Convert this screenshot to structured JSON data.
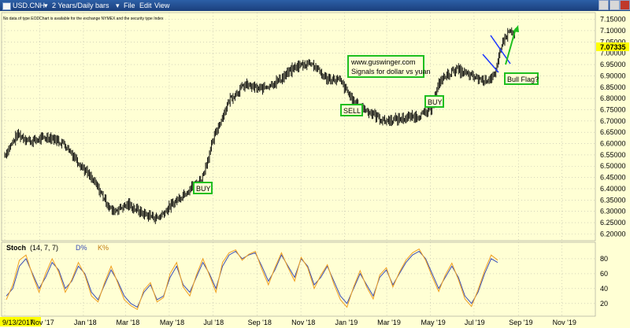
{
  "window": {
    "symbol": "USD.CNH",
    "interval": "2 Years/Daily bars",
    "menus": [
      "File",
      "Edit",
      "View"
    ],
    "notice": "No data of type EODChart is available for the exchange NYMEX and the security type Index"
  },
  "colors": {
    "background": "#ffffd4",
    "price_bars": "#000000",
    "stoch_d": "#3a4db5",
    "stoch_k": "#f0a020",
    "callout_border": "#1fbf1f",
    "flag_lines": "#1a35ff",
    "arrow": "#1fbf1f",
    "last_price_tag": "#ffff00"
  },
  "chart_data": [
    {
      "type": "ohlc",
      "title": "USD.CNH",
      "last_price": "7.07335",
      "ylim": [
        6.17,
        7.18
      ],
      "y_ticks": [
        "7.15000",
        "7.10000",
        "7.05000",
        "7.00000",
        "6.95000",
        "6.90000",
        "6.85000",
        "6.80000",
        "6.75000",
        "6.70000",
        "6.65000",
        "6.60000",
        "6.55000",
        "6.50000",
        "6.45000",
        "6.40000",
        "6.35000",
        "6.30000",
        "6.25000",
        "6.20000"
      ],
      "x_ticks": [
        "9/13/2017",
        "Nov '17",
        "Jan '18",
        "Mar '18",
        "May '18",
        "Jul '18",
        "Sep '18",
        "Nov '18",
        "Jan '19",
        "Mar '19",
        "May '19",
        "Jul '19",
        "Sep '19",
        "Nov '19"
      ],
      "series": [
        {
          "x": "2017-09-13",
          "y": 6.55
        },
        {
          "x": "2017-10-01",
          "y": 6.64
        },
        {
          "x": "2017-10-20",
          "y": 6.61
        },
        {
          "x": "2017-11-15",
          "y": 6.63
        },
        {
          "x": "2017-12-05",
          "y": 6.6
        },
        {
          "x": "2017-12-25",
          "y": 6.52
        },
        {
          "x": "2018-01-20",
          "y": 6.41
        },
        {
          "x": "2018-02-10",
          "y": 6.3
        },
        {
          "x": "2018-03-05",
          "y": 6.33
        },
        {
          "x": "2018-03-25",
          "y": 6.29
        },
        {
          "x": "2018-04-15",
          "y": 6.27
        },
        {
          "x": "2018-05-05",
          "y": 6.33
        },
        {
          "x": "2018-05-25",
          "y": 6.39
        },
        {
          "x": "2018-06-15",
          "y": 6.44
        },
        {
          "x": "2018-07-05",
          "y": 6.65
        },
        {
          "x": "2018-07-25",
          "y": 6.8
        },
        {
          "x": "2018-08-15",
          "y": 6.86
        },
        {
          "x": "2018-09-05",
          "y": 6.84
        },
        {
          "x": "2018-10-01",
          "y": 6.88
        },
        {
          "x": "2018-10-25",
          "y": 6.94
        },
        {
          "x": "2018-11-15",
          "y": 6.96
        },
        {
          "x": "2018-12-05",
          "y": 6.89
        },
        {
          "x": "2018-12-25",
          "y": 6.88
        },
        {
          "x": "2019-01-15",
          "y": 6.78
        },
        {
          "x": "2019-02-05",
          "y": 6.74
        },
        {
          "x": "2019-02-25",
          "y": 6.7
        },
        {
          "x": "2019-03-20",
          "y": 6.71
        },
        {
          "x": "2019-04-10",
          "y": 6.72
        },
        {
          "x": "2019-04-30",
          "y": 6.74
        },
        {
          "x": "2019-05-15",
          "y": 6.88
        },
        {
          "x": "2019-06-05",
          "y": 6.93
        },
        {
          "x": "2019-06-25",
          "y": 6.9
        },
        {
          "x": "2019-07-15",
          "y": 6.88
        },
        {
          "x": "2019-07-31",
          "y": 6.9
        },
        {
          "x": "2019-08-08",
          "y": 7.04
        },
        {
          "x": "2019-08-20",
          "y": 7.1
        },
        {
          "x": "2019-08-28",
          "y": 7.07
        }
      ],
      "annotations": [
        {
          "text": "BUY",
          "x": "2018-06-01",
          "y": 6.43
        },
        {
          "text": "SELL",
          "x": "2019-01-05",
          "y": 6.81
        },
        {
          "text": "BUY",
          "x": "2019-05-10",
          "y": 6.83
        },
        {
          "text": "www.guswinger.com",
          "text2": "Signals for dollar vs yuan"
        },
        {
          "text": "Bull Flag?"
        }
      ]
    },
    {
      "type": "line",
      "title": "Stoch",
      "params": "(14, 7, 7)",
      "ylim": [
        5,
        100
      ],
      "y_ticks": [
        "80",
        "60",
        "40",
        "20"
      ],
      "series": [
        {
          "name": "D%",
          "values": [
            30,
            40,
            70,
            80,
            60,
            40,
            55,
            75,
            65,
            40,
            50,
            70,
            60,
            35,
            25,
            45,
            65,
            50,
            30,
            20,
            15,
            35,
            45,
            25,
            30,
            55,
            70,
            45,
            35,
            55,
            75,
            60,
            40,
            70,
            85,
            90,
            80,
            85,
            88,
            70,
            50,
            65,
            85,
            70,
            55,
            80,
            70,
            45,
            55,
            70,
            50,
            30,
            20,
            40,
            60,
            45,
            30,
            55,
            65,
            45,
            60,
            75,
            85,
            90,
            80,
            60,
            40,
            55,
            70,
            55,
            30,
            20,
            35,
            60,
            80,
            75
          ]
        },
        {
          "name": "K%",
          "values": [
            25,
            45,
            78,
            85,
            58,
            35,
            60,
            80,
            62,
            35,
            52,
            75,
            58,
            30,
            22,
            48,
            70,
            48,
            25,
            17,
            12,
            38,
            48,
            22,
            28,
            60,
            75,
            42,
            30,
            58,
            80,
            58,
            35,
            75,
            88,
            92,
            78,
            86,
            90,
            66,
            45,
            68,
            88,
            68,
            50,
            82,
            68,
            40,
            58,
            72,
            46,
            25,
            15,
            42,
            64,
            42,
            26,
            58,
            68,
            42,
            62,
            78,
            88,
            93,
            78,
            56,
            36,
            58,
            74,
            52,
            26,
            16,
            38,
            64,
            85,
            78
          ]
        }
      ]
    }
  ]
}
